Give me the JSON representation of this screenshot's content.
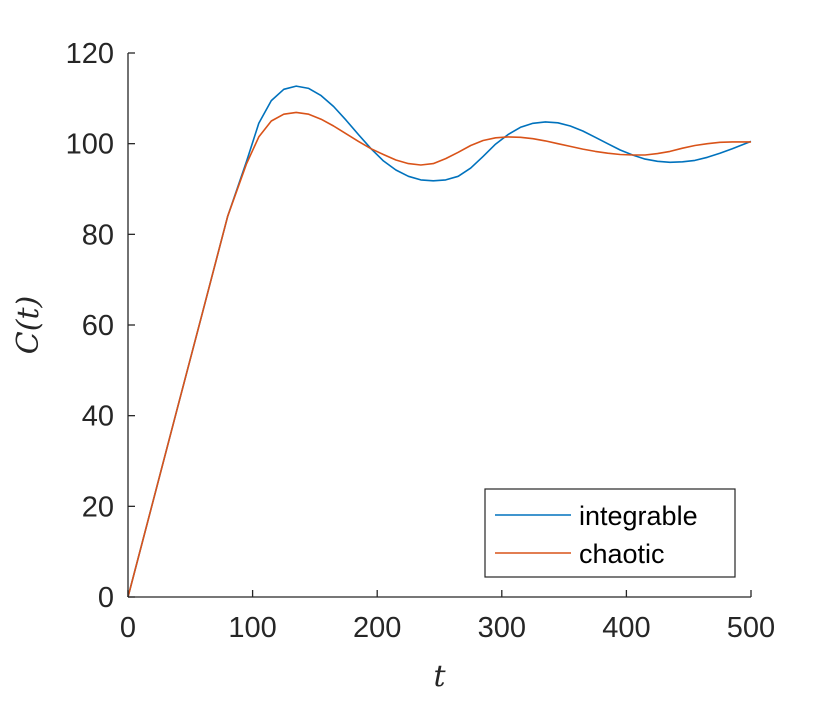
{
  "chart_data": {
    "type": "line",
    "xlabel": "t",
    "ylabel": "C(t)",
    "xlim": [
      0,
      500
    ],
    "ylim": [
      0,
      120
    ],
    "xticks": [
      0,
      100,
      200,
      300,
      400,
      500
    ],
    "yticks": [
      0,
      20,
      40,
      60,
      80,
      100,
      120
    ],
    "grid": false,
    "legend_position": "bottom-right",
    "series": [
      {
        "name": "integrable",
        "color": "#0072BD",
        "x": [
          0,
          20,
          40,
          60,
          80,
          95,
          105,
          115,
          125,
          135,
          145,
          155,
          165,
          175,
          185,
          195,
          205,
          215,
          225,
          235,
          245,
          255,
          265,
          275,
          285,
          295,
          305,
          315,
          325,
          335,
          345,
          355,
          365,
          375,
          385,
          395,
          405,
          415,
          425,
          435,
          445,
          455,
          465,
          475,
          485,
          500
        ],
        "y": [
          0,
          21,
          42,
          63,
          84,
          96,
          104.5,
          109.5,
          112,
          112.7,
          112.2,
          110.6,
          108.2,
          105.2,
          102,
          98.9,
          96.2,
          94.2,
          92.8,
          92,
          91.8,
          92,
          92.8,
          94.6,
          97.2,
          99.9,
          102,
          103.6,
          104.5,
          104.8,
          104.6,
          103.9,
          102.8,
          101.4,
          100,
          98.6,
          97.5,
          96.6,
          96.1,
          95.9,
          96,
          96.3,
          97,
          97.9,
          98.9,
          100.5
        ]
      },
      {
        "name": "chaotic",
        "color": "#D95319",
        "x": [
          0,
          20,
          40,
          60,
          80,
          95,
          105,
          115,
          125,
          135,
          145,
          155,
          165,
          175,
          185,
          195,
          205,
          215,
          225,
          235,
          245,
          255,
          265,
          275,
          285,
          295,
          305,
          315,
          325,
          335,
          345,
          355,
          365,
          375,
          385,
          395,
          405,
          415,
          425,
          435,
          445,
          455,
          465,
          475,
          485,
          500
        ],
        "y": [
          0,
          21,
          42,
          63,
          84,
          95.5,
          101.5,
          105,
          106.5,
          106.9,
          106.5,
          105.4,
          103.9,
          102.2,
          100.5,
          98.9,
          97.6,
          96.4,
          95.6,
          95.3,
          95.6,
          96.7,
          98.1,
          99.6,
          100.7,
          101.3,
          101.5,
          101.4,
          101.1,
          100.6,
          100,
          99.4,
          98.8,
          98.3,
          97.9,
          97.6,
          97.5,
          97.5,
          97.8,
          98.3,
          99,
          99.6,
          100,
          100.3,
          100.4,
          100.4
        ]
      }
    ]
  }
}
